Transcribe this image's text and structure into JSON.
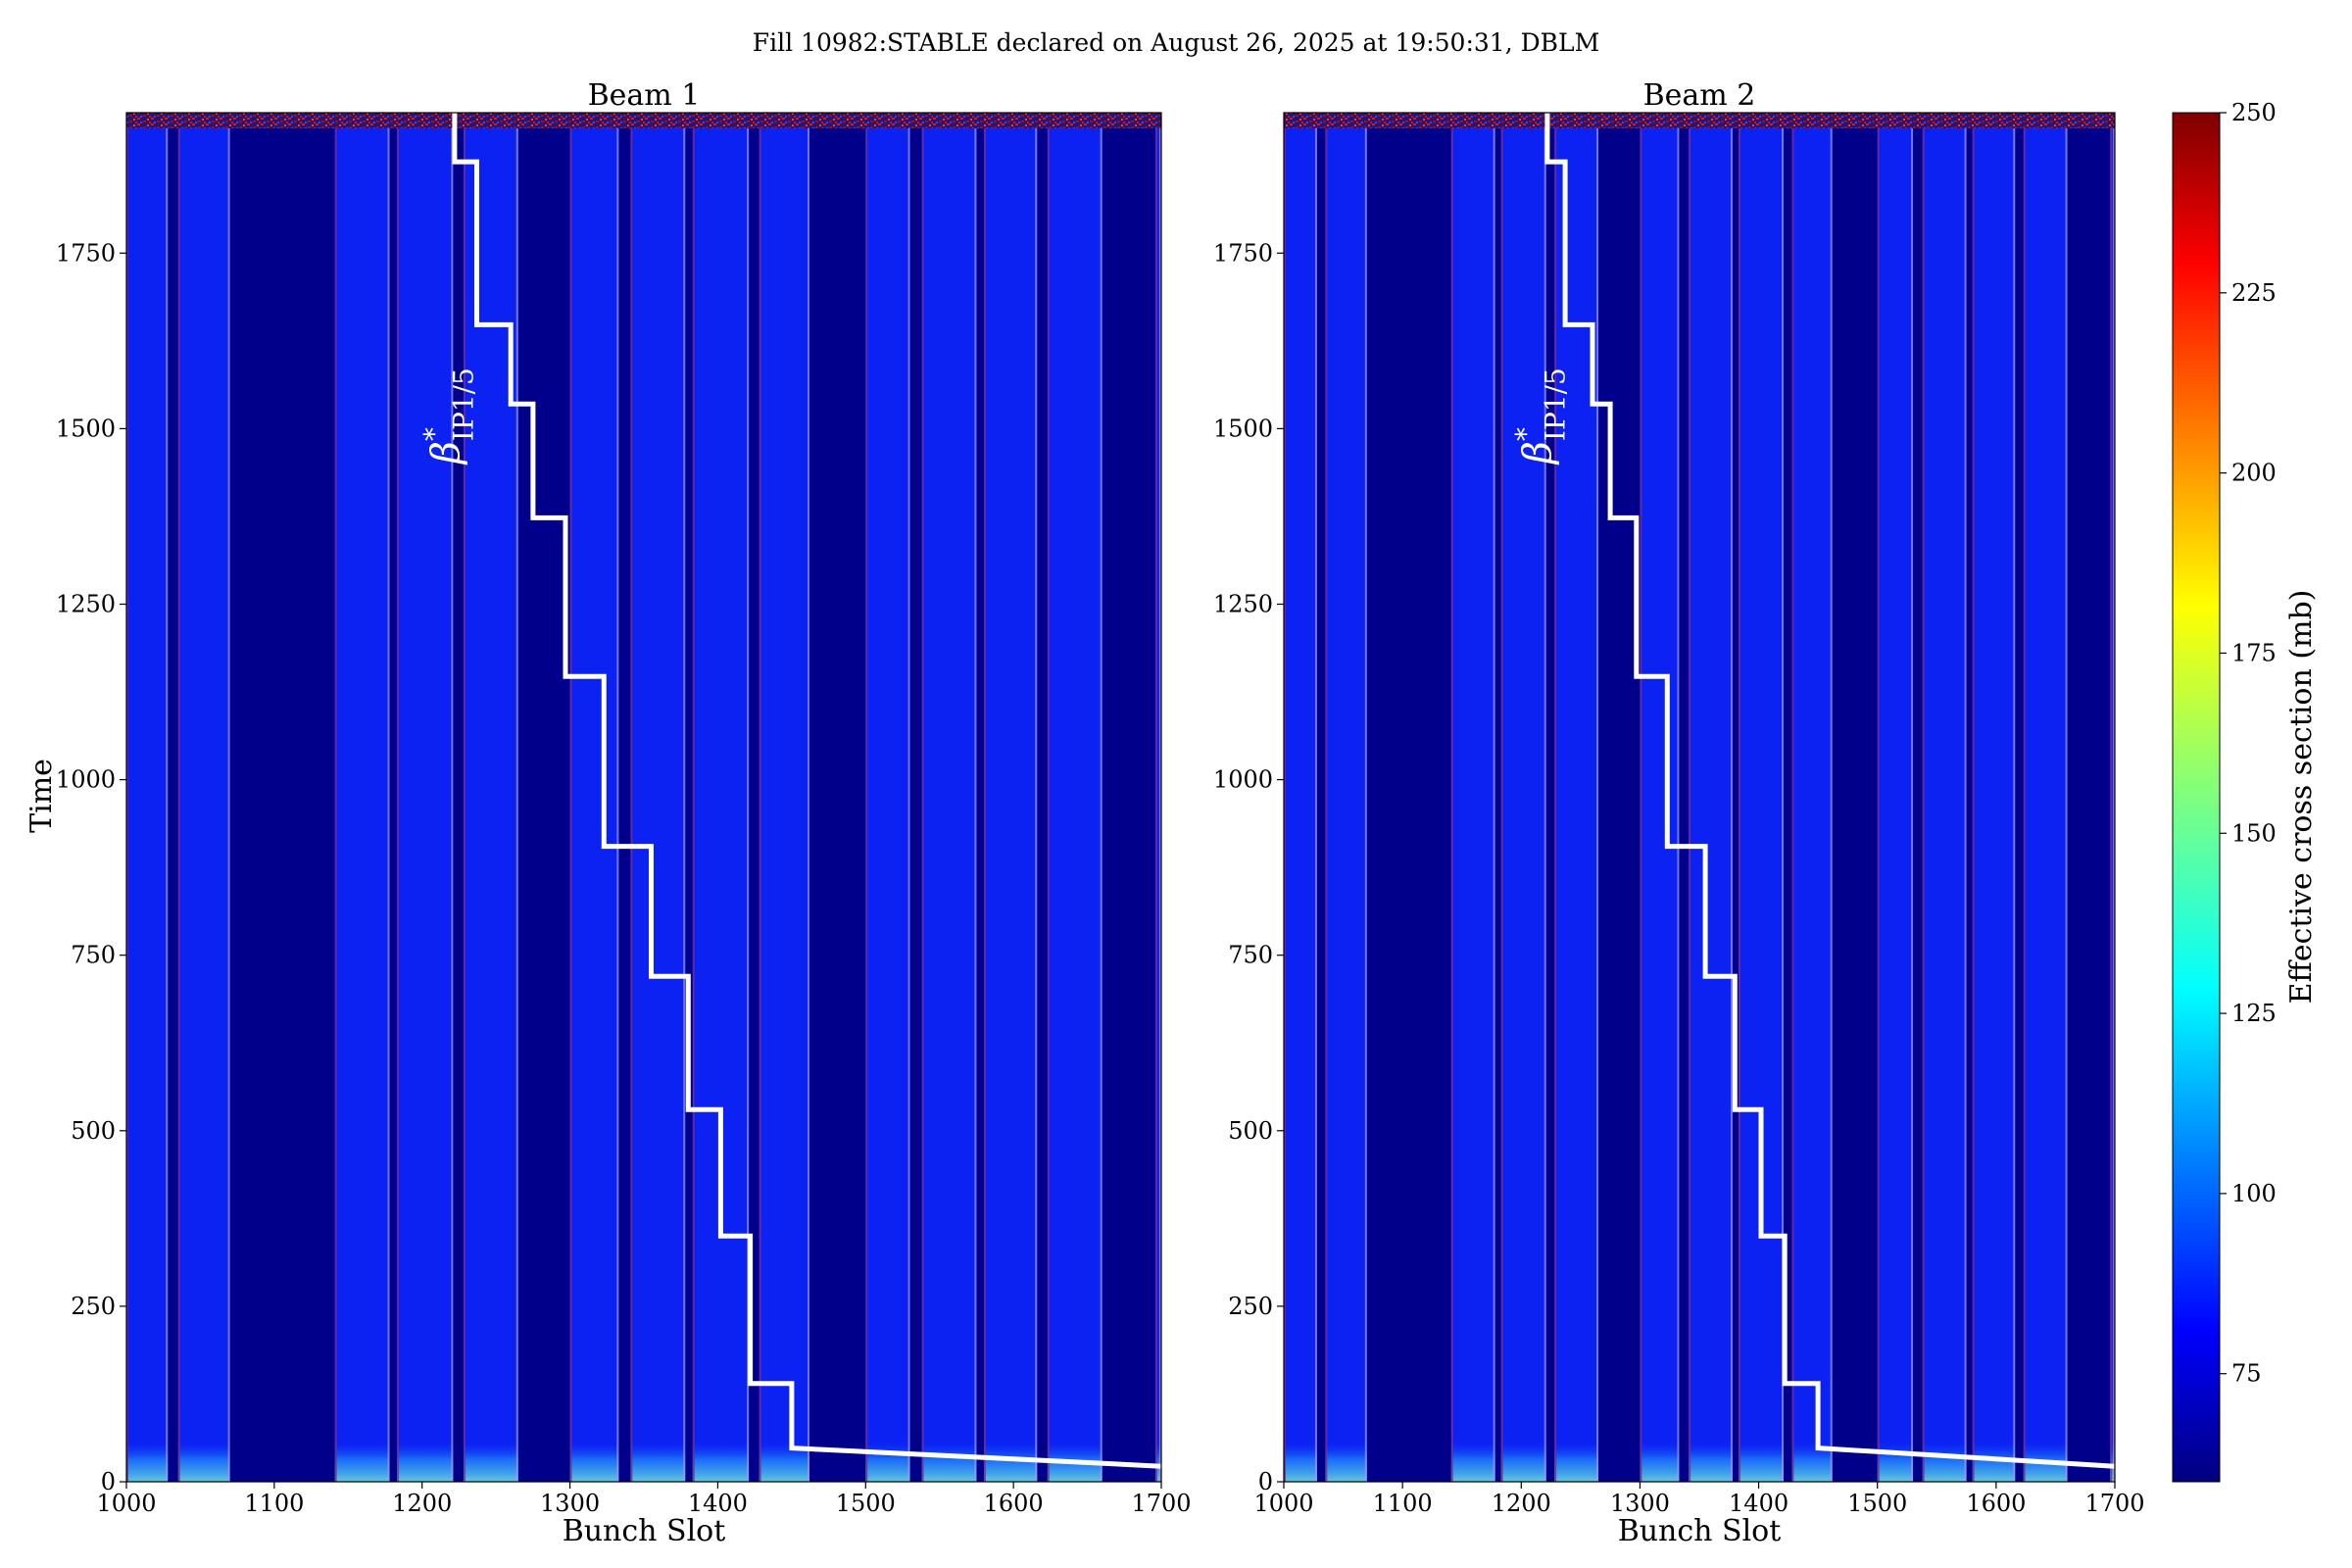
{
  "chart_data": {
    "type": "heatmap",
    "suptitle": "Fill 10982:STABLE declared on August 26, 2025 at 19:50:31, DBLM",
    "colorbar": {
      "label": "Effective cross section (mb)",
      "range": [
        60,
        250
      ],
      "ticks": [
        75,
        100,
        125,
        150,
        175,
        200,
        225,
        250
      ],
      "colormap": "jet"
    },
    "panels": [
      {
        "title": "Beam 1",
        "xlabel": "Bunch Slot",
        "ylabel": "Time",
        "xlim": [
          1000,
          1700
        ],
        "ylim": [
          0,
          1950
        ],
        "xticks": [
          1000,
          1100,
          1200,
          1300,
          1400,
          1500,
          1600,
          1700
        ],
        "yticks": [
          0,
          250,
          500,
          750,
          1000,
          1250,
          1500,
          1750
        ],
        "annotation": {
          "base": "β",
          "sup": "*",
          "sub": "IP1/5",
          "x": 1225,
          "y": 1450
        },
        "filled_slots": [
          [
            1000,
            1028
          ],
          [
            1035,
            1070
          ],
          [
            1141,
            1178
          ],
          [
            1183,
            1221
          ],
          [
            1228,
            1265
          ],
          [
            1300,
            1333
          ],
          [
            1341,
            1378
          ],
          [
            1383,
            1421
          ],
          [
            1428,
            1462
          ],
          [
            1500,
            1530
          ],
          [
            1538,
            1575
          ],
          [
            1580,
            1616
          ],
          [
            1623,
            1660
          ],
          [
            1696,
            1700
          ]
        ],
        "beta_step_line": {
          "x": [
            1222,
            1222,
            1237,
            1237,
            1260,
            1260,
            1275,
            1275,
            1297,
            1297,
            1323,
            1323,
            1355,
            1355,
            1380,
            1380,
            1402,
            1402,
            1422,
            1422,
            1450,
            1450,
            1700
          ],
          "y": [
            1950,
            1880,
            1880,
            1648,
            1648,
            1535,
            1535,
            1373,
            1373,
            1147,
            1147,
            905,
            905,
            720,
            720,
            530,
            530,
            350,
            350,
            140,
            140,
            48,
            22
          ]
        }
      },
      {
        "title": "Beam 2",
        "xlabel": "Bunch Slot",
        "ylabel": "",
        "xlim": [
          1000,
          1700
        ],
        "ylim": [
          0,
          1950
        ],
        "xticks": [
          1000,
          1100,
          1200,
          1300,
          1400,
          1500,
          1600,
          1700
        ],
        "yticks": [
          0,
          250,
          500,
          750,
          1000,
          1250,
          1500,
          1750
        ],
        "annotation": {
          "base": "β",
          "sup": "*",
          "sub": "IP1/5",
          "x": 1225,
          "y": 1450
        },
        "filled_slots": [
          [
            1000,
            1028
          ],
          [
            1035,
            1070
          ],
          [
            1141,
            1178
          ],
          [
            1183,
            1221
          ],
          [
            1228,
            1265
          ],
          [
            1300,
            1333
          ],
          [
            1341,
            1378
          ],
          [
            1383,
            1421
          ],
          [
            1428,
            1462
          ],
          [
            1500,
            1530
          ],
          [
            1538,
            1575
          ],
          [
            1580,
            1616
          ],
          [
            1623,
            1660
          ],
          [
            1696,
            1700
          ]
        ],
        "beta_step_line": {
          "x": [
            1222,
            1222,
            1237,
            1237,
            1260,
            1260,
            1275,
            1275,
            1297,
            1297,
            1323,
            1323,
            1355,
            1355,
            1380,
            1380,
            1402,
            1402,
            1422,
            1422,
            1450,
            1450,
            1700
          ],
          "y": [
            1950,
            1880,
            1880,
            1648,
            1648,
            1535,
            1535,
            1373,
            1373,
            1147,
            1147,
            905,
            905,
            720,
            720,
            530,
            530,
            350,
            350,
            140,
            140,
            48,
            22
          ]
        }
      }
    ]
  }
}
